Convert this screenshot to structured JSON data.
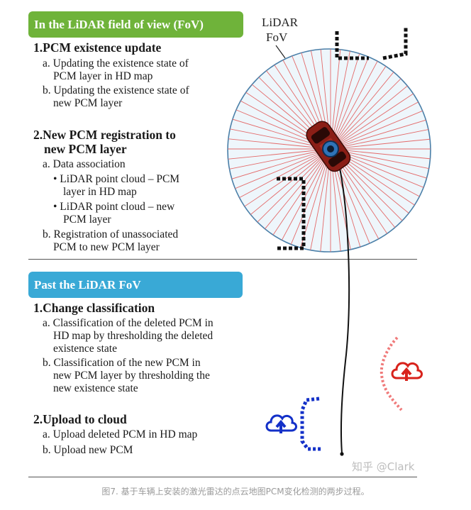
{
  "section1": {
    "banner": "In the LiDAR field of view (FoV)",
    "step1": {
      "title": "1.PCM existence update",
      "a_line1": "a. Updating the existence state of",
      "a_line2": "PCM layer in HD map",
      "b_line1": "b. Updating the existence state of",
      "b_line2": "new PCM layer"
    },
    "step2": {
      "title_line1": "2.New PCM registration to",
      "title_line2": "new PCM layer",
      "a_line1": "a. Data association",
      "bullet1_line1": "• LiDAR point cloud – PCM",
      "bullet1_line2": "layer in HD map",
      "bullet2_line1": "• LiDAR point cloud – new",
      "bullet2_line2": "PCM layer",
      "b_line1": "b. Registration of unassociated",
      "b_line2": "PCM to new PCM layer"
    }
  },
  "section2": {
    "banner": "Past the LiDAR FoV",
    "step1": {
      "title": "1.Change classification",
      "a_line1": "a. Classification of the deleted PCM in",
      "a_line2": "HD map by thresholding the deleted",
      "a_line3": "existence state",
      "b_line1": "b. Classification of the new PCM in",
      "b_line2": "new PCM layer by thresholding the",
      "b_line3": "new existence state"
    },
    "step2": {
      "title": "2.Upload to cloud",
      "a_line1": "a. Upload deleted PCM in HD map",
      "b_line1": "b. Upload new PCM"
    }
  },
  "diagram": {
    "fov_label_line1": "LiDAR",
    "fov_label_line2": "FoV",
    "watermark": "知乎 @Clark",
    "icons": [
      "cloud-upload-icon-blue",
      "cloud-upload-icon-red",
      "car-icon",
      "lidar-sensor-icon"
    ]
  },
  "colors": {
    "banner_green": "#6fb33a",
    "banner_blue": "#39a9d6",
    "fov_circle": "#4a7fa8",
    "fov_fill": "#eef6fb",
    "rays": "#e36a6a",
    "car": "#7a1b15",
    "upload_blue": "#1330c8",
    "upload_red": "#d8221b"
  },
  "caption": "图7. 基于车辆上安装的激光雷达的点云地图PCM变化检测的两步过程。"
}
